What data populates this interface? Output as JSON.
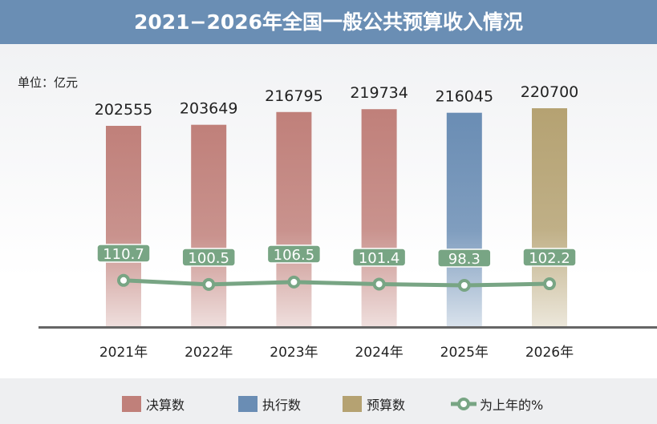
{
  "title": "2021−2026年全国一般公共预算收入情况",
  "unit": "单位：亿元",
  "chart_data": {
    "type": "bar",
    "title": "2021−2026年全国一般公共预算收入情况",
    "ylabel": "单位：亿元",
    "categories": [
      "2021年",
      "2022年",
      "2023年",
      "2024年",
      "2025年",
      "2026年"
    ],
    "values": [
      202555,
      203649,
      216795,
      219734,
      216045,
      220700
    ],
    "bar_types": [
      "决算数",
      "决算数",
      "决算数",
      "决算数",
      "执行数",
      "预算数"
    ],
    "line_series": {
      "name": "为上年的%",
      "values": [
        110.7,
        100.5,
        106.5,
        101.4,
        98.3,
        102.2
      ]
    },
    "legend": [
      "决算数",
      "执行数",
      "预算数",
      "为上年的%"
    ],
    "legend_position": "bottom",
    "colors": {
      "决算数": "#c0807a",
      "执行数": "#6a8db4",
      "预算数": "#b5a272",
      "line": "#78a584"
    },
    "grid": false
  }
}
